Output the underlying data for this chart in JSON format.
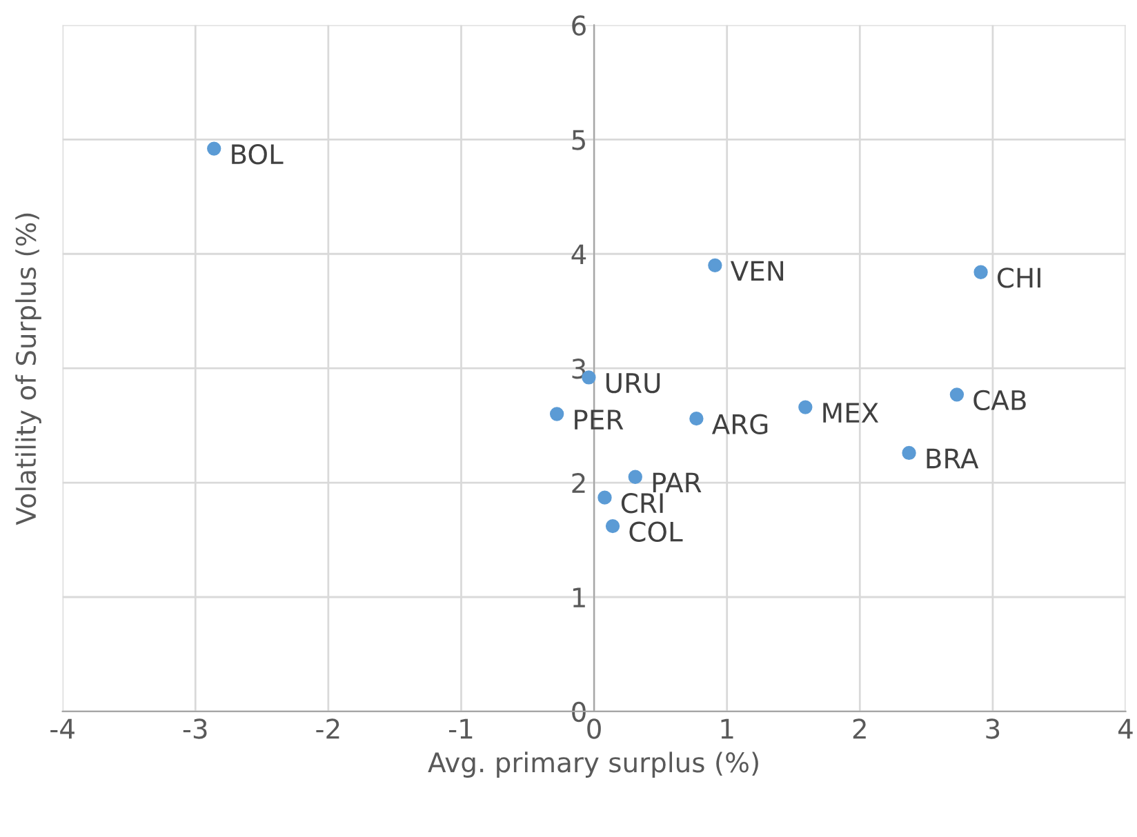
{
  "chart_data": {
    "type": "scatter",
    "xlabel": "Avg. primary surplus (%)",
    "ylabel": "Volatility of Surplus (%)",
    "xlim": [
      -4,
      4
    ],
    "xticks": [
      -4,
      -3,
      -2,
      -1,
      0,
      1,
      2,
      3,
      4
    ],
    "ylim": [
      0,
      6
    ],
    "yticks": [
      0,
      1,
      2,
      3,
      4,
      5,
      6
    ],
    "grid": true,
    "marker": "circle",
    "series": [
      {
        "color": "#5b9bd5",
        "x": [
          -2.86,
          0.91,
          2.91,
          -0.04,
          -0.28,
          0.77,
          1.59,
          2.73,
          2.37,
          0.31,
          0.08,
          0.14
        ],
        "values": [
          4.92,
          3.9,
          3.84,
          2.92,
          2.6,
          2.56,
          2.66,
          2.77,
          2.26,
          2.05,
          1.87,
          1.62
        ]
      }
    ],
    "annotations": [
      {
        "text": "BOL",
        "x": -2.86,
        "y": 4.92
      },
      {
        "text": "VEN",
        "x": 0.91,
        "y": 3.9
      },
      {
        "text": "CHI",
        "x": 2.91,
        "y": 3.84
      },
      {
        "text": "URU",
        "x": -0.04,
        "y": 2.92
      },
      {
        "text": "PER",
        "x": -0.28,
        "y": 2.6
      },
      {
        "text": "ARG",
        "x": 0.77,
        "y": 2.56
      },
      {
        "text": "MEX",
        "x": 1.59,
        "y": 2.66
      },
      {
        "text": "CAB",
        "x": 2.73,
        "y": 2.77
      },
      {
        "text": "BRA",
        "x": 2.37,
        "y": 2.26
      },
      {
        "text": "PAR",
        "x": 0.31,
        "y": 2.05
      },
      {
        "text": "CRI",
        "x": 0.08,
        "y": 1.87
      },
      {
        "text": "COL",
        "x": 0.14,
        "y": 1.62
      }
    ]
  }
}
